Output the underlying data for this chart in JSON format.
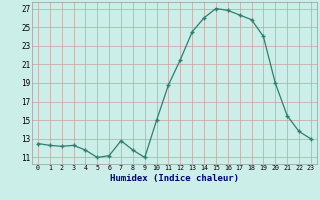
{
  "x": [
    0,
    1,
    2,
    3,
    4,
    5,
    6,
    7,
    8,
    9,
    10,
    11,
    12,
    13,
    14,
    15,
    16,
    17,
    18,
    19,
    20,
    21,
    22,
    23
  ],
  "y": [
    12.5,
    12.3,
    12.2,
    12.3,
    11.8,
    11.0,
    11.2,
    12.8,
    11.8,
    11.0,
    15.0,
    18.8,
    21.5,
    24.5,
    26.0,
    27.0,
    26.8,
    26.3,
    25.8,
    24.0,
    19.0,
    15.5,
    13.8,
    13.0
  ],
  "line_color": "#2e7d6e",
  "marker": "+",
  "marker_size": 3,
  "marker_lw": 1.0,
  "line_width": 0.9,
  "bg_color": "#cceee8",
  "grid_color": "#c8a0a0",
  "xlabel": "Humidex (Indice chaleur)",
  "ylabel_ticks": [
    11,
    13,
    15,
    17,
    19,
    21,
    23,
    25,
    27
  ],
  "xtick_labels": [
    "0",
    "1",
    "2",
    "3",
    "4",
    "5",
    "6",
    "7",
    "8",
    "9",
    "10",
    "11",
    "12",
    "13",
    "14",
    "15",
    "16",
    "17",
    "18",
    "19",
    "20",
    "21",
    "22",
    "23"
  ],
  "xlim": [
    -0.5,
    23.5
  ],
  "ylim": [
    10.3,
    27.7
  ]
}
